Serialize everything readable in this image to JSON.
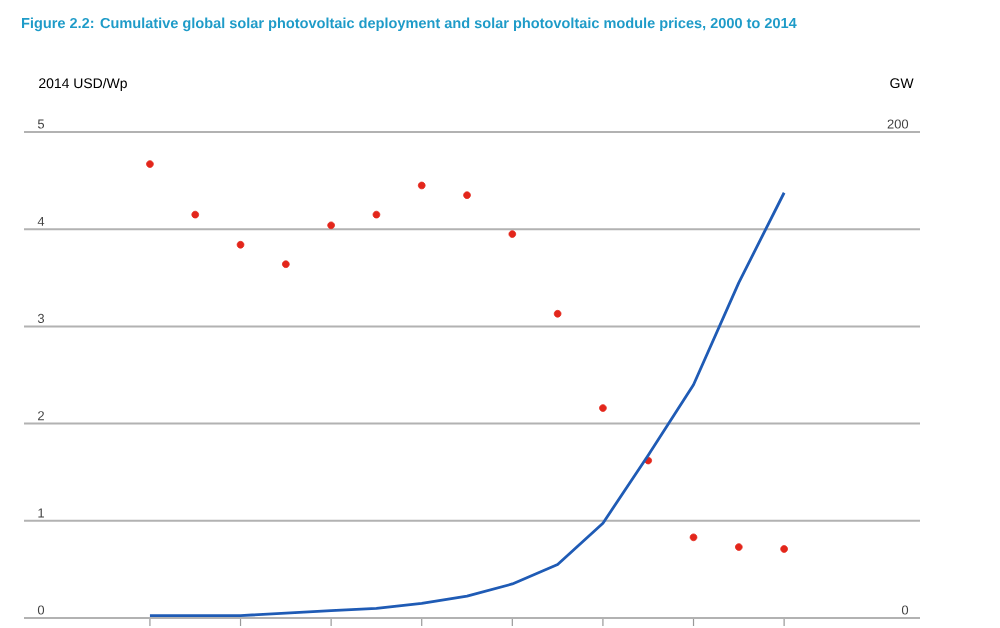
{
  "chart_data": {
    "type": "scatter",
    "title": "Figure 2.2: Cumulative global solar photovoltaic deployment and solar photovoltaic module prices, 2000 to 2014",
    "ylabel": "2014 USD/Wp",
    "y2label": "GW",
    "categories": [
      null,
      null,
      null,
      null,
      null,
      null,
      null,
      null,
      null,
      null,
      null,
      null,
      null,
      null,
      null
    ],
    "ylim": [
      0,
      5
    ],
    "yticks": [
      0,
      1,
      2,
      3,
      4,
      5
    ],
    "y2lim": [
      0,
      200
    ],
    "y2ticks": [
      0,
      200
    ],
    "grid": "y",
    "series": [
      {
        "color": "#e3261b",
        "marker": "circle",
        "values": [
          4.67,
          4.15,
          3.84,
          3.64,
          4.04,
          4.15,
          4.45,
          4.35,
          3.95,
          3.13,
          2.16,
          1.62,
          0.83,
          0.73,
          0.71
        ]
      },
      {
        "type": "line",
        "axis": "y2",
        "color": "#1f5bb5",
        "marker": "none",
        "line_style": "solid",
        "values": [
          1,
          1,
          1,
          2,
          3,
          4,
          6,
          9,
          14,
          22,
          39,
          67,
          96,
          138,
          175
        ]
      }
    ]
  }
}
